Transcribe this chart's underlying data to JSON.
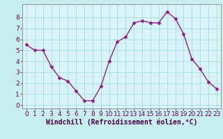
{
  "x": [
    0,
    1,
    2,
    3,
    4,
    5,
    6,
    7,
    8,
    9,
    10,
    11,
    12,
    13,
    14,
    15,
    16,
    17,
    18,
    19,
    20,
    21,
    22,
    23
  ],
  "y": [
    5.5,
    5.0,
    5.0,
    3.5,
    2.5,
    2.2,
    1.3,
    0.4,
    0.4,
    1.7,
    4.0,
    5.8,
    6.2,
    7.5,
    7.7,
    7.5,
    7.5,
    8.5,
    7.9,
    6.5,
    4.2,
    3.3,
    2.1,
    1.5
  ],
  "line_color": "#882288",
  "marker": "D",
  "marker_size": 2.5,
  "background_color": "#c8eef0",
  "plot_bg_color": "#d8f4f8",
  "grid_color": "#aadddd",
  "xlabel": "Windchill (Refroidissement éolien,°C)",
  "xlabel_fontsize": 7,
  "xlim": [
    -0.5,
    23.5
  ],
  "ylim": [
    -0.3,
    9.2
  ],
  "yticks": [
    0,
    1,
    2,
    3,
    4,
    5,
    6,
    7,
    8
  ],
  "xticks": [
    0,
    1,
    2,
    3,
    4,
    5,
    6,
    7,
    8,
    9,
    10,
    11,
    12,
    13,
    14,
    15,
    16,
    17,
    18,
    19,
    20,
    21,
    22,
    23
  ],
  "tick_fontsize": 6.5,
  "line_width": 1.0,
  "tick_color": "#660066",
  "label_color": "#440044",
  "spine_color": "#888888"
}
